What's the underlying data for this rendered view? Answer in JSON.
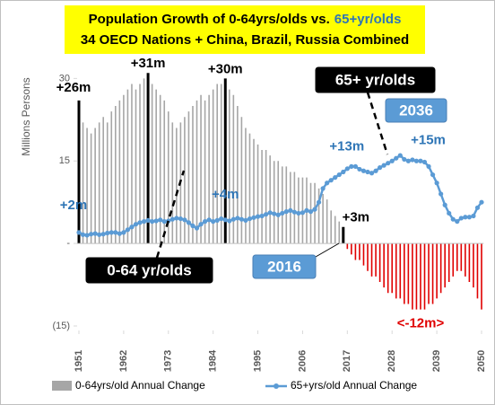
{
  "chart_data": {
    "type": "bar_line",
    "title": [
      "Population Growth of 0-64yrs/olds vs.",
      "65+yr/olds"
    ],
    "subtitle": "34 OECD Nations + China,  Brazil, Russia Combined",
    "y_label": "Millions Persons",
    "x": [
      1951,
      1952,
      1953,
      1954,
      1955,
      1956,
      1957,
      1958,
      1959,
      1960,
      1961,
      1962,
      1963,
      1964,
      1965,
      1966,
      1967,
      1968,
      1969,
      1970,
      1971,
      1972,
      1973,
      1974,
      1975,
      1976,
      1977,
      1978,
      1979,
      1980,
      1981,
      1982,
      1983,
      1984,
      1985,
      1986,
      1987,
      1988,
      1989,
      1990,
      1991,
      1992,
      1993,
      1994,
      1995,
      1996,
      1997,
      1998,
      1999,
      2000,
      2001,
      2002,
      2003,
      2004,
      2005,
      2006,
      2007,
      2008,
      2009,
      2010,
      2011,
      2012,
      2013,
      2014,
      2015,
      2016,
      2017,
      2018,
      2019,
      2020,
      2021,
      2022,
      2023,
      2024,
      2025,
      2026,
      2027,
      2028,
      2029,
      2030,
      2031,
      2032,
      2033,
      2034,
      2035,
      2036,
      2037,
      2038,
      2039,
      2040,
      2041,
      2042,
      2043,
      2044,
      2045,
      2046,
      2047,
      2048,
      2049,
      2050
    ],
    "xlim": [
      1950.5,
      2050.5
    ],
    "xticks": [
      1951,
      1962,
      1973,
      1984,
      1995,
      2006,
      2017,
      2028,
      2039,
      2050
    ],
    "ylim": [
      -15,
      33
    ],
    "yticks": [
      30,
      15,
      {
        "value": 0,
        "label": "-"
      },
      {
        "value": -15,
        "label": "(15)"
      }
    ],
    "series": [
      {
        "name": "0-64yrs/old Annual Change",
        "type": "bar",
        "color": "#a6a6a6",
        "negative_color": "#e00000",
        "highlight_color": "#000000",
        "values": [
          26,
          22,
          21,
          20,
          21,
          22,
          23,
          22,
          24,
          25,
          26,
          27,
          28,
          29,
          28,
          29,
          30,
          31,
          29,
          28,
          27,
          26,
          24,
          22,
          21,
          22,
          23,
          24,
          25,
          26,
          27,
          26,
          27,
          28,
          29,
          29,
          30,
          28,
          27,
          25,
          23,
          21,
          20,
          19,
          18,
          17,
          17,
          16,
          15,
          15,
          14,
          14,
          13,
          13,
          12,
          12,
          12,
          11,
          11,
          10,
          9,
          8,
          6,
          5,
          4,
          3,
          -1,
          -2,
          -3,
          -3,
          -4,
          -5,
          -6,
          -6,
          -7,
          -8,
          -9,
          -9,
          -10,
          -10,
          -11,
          -11,
          -12,
          -12,
          -12,
          -12,
          -11,
          -11,
          -10,
          -9,
          -8,
          -7,
          -6,
          -5,
          -5,
          -6,
          -7,
          -8,
          -10,
          -12
        ]
      },
      {
        "name": "65+yrs/old Annual Change",
        "type": "line",
        "color": "#5b9bd5",
        "values": [
          2,
          1.6,
          1.5,
          1.7,
          1.8,
          1.6,
          1.7,
          1.9,
          2,
          2,
          1.8,
          2,
          2.5,
          3,
          3.5,
          3.8,
          4,
          4.2,
          4,
          4.1,
          4.3,
          4,
          4.1,
          4.4,
          4.6,
          4.5,
          4.3,
          3.8,
          3.2,
          2.8,
          3.5,
          4,
          4.3,
          4,
          4.2,
          4.5,
          4.3,
          4.1,
          4.4,
          4.6,
          4.4,
          4.2,
          4.5,
          4.7,
          4.9,
          5,
          5.3,
          5.6,
          5.4,
          5.2,
          5.5,
          5.8,
          6,
          5.7,
          5.5,
          5.6,
          6,
          5.8,
          6.2,
          7.5,
          10,
          11,
          11.5,
          12,
          12.5,
          13,
          13.6,
          14,
          14,
          13.5,
          13.2,
          13,
          12.8,
          13.2,
          13.8,
          14.2,
          14.6,
          15,
          15.5,
          16,
          15.3,
          15,
          15.2,
          15,
          15,
          14.8,
          14,
          12.5,
          11,
          9,
          7,
          5.5,
          4.4,
          4,
          4.6,
          4.8,
          4.8,
          5,
          6.5,
          7.5
        ]
      }
    ],
    "annotations": [
      {
        "text": "+26m",
        "series": 0,
        "x": 1951,
        "color": "#000000"
      },
      {
        "text": "+31m",
        "series": 0,
        "x": 1968,
        "color": "#000000"
      },
      {
        "text": "+30m",
        "series": 0,
        "x": 1987,
        "color": "#000000"
      },
      {
        "text": "+3m",
        "series": 0,
        "x": 2016,
        "color": "#000000"
      },
      {
        "text": "<-12m>",
        "series": 0,
        "x": 2035,
        "color": "#e00000"
      },
      {
        "text": "+2m",
        "series": 1,
        "x": 1951,
        "color": "#2e75b6"
      },
      {
        "text": "+4m",
        "series": 1,
        "x": 1987,
        "color": "#2e75b6"
      },
      {
        "text": "+13m",
        "series": 1,
        "x": 2016,
        "color": "#2e75b6"
      },
      {
        "text": "+15m",
        "series": 1,
        "x": 2036,
        "color": "#2e75b6"
      }
    ],
    "callouts": [
      {
        "text": "65+ yr/olds",
        "color": "#000000"
      },
      {
        "text": "2036",
        "color": "#5b9bd5"
      },
      {
        "text": "0-64 yr/olds",
        "color": "#000000"
      },
      {
        "text": "2016",
        "color": "#5b9bd5"
      }
    ],
    "legend": "bottom"
  }
}
